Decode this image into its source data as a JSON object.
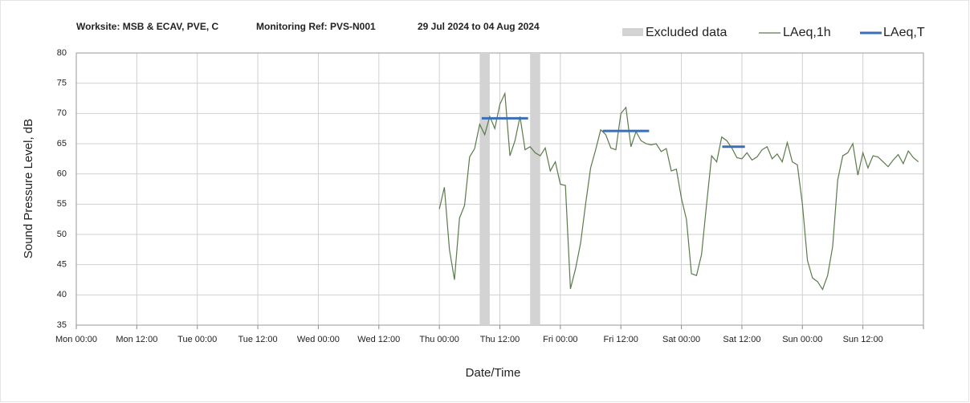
{
  "chart_data": {
    "type": "line",
    "title": "Worksite: MSB & ECAV, PVE, C",
    "subtitle": "Monitoring Ref: PVS-N001",
    "date_range": "29 Jul 2024 to 04 Aug 2024",
    "xlabel": "Date/Time",
    "ylabel": "Sound Pressure Level, dB",
    "xlim": [
      0,
      168
    ],
    "ylim": [
      35,
      80
    ],
    "yticks": [
      35,
      40,
      45,
      50,
      55,
      60,
      65,
      70,
      75,
      80
    ],
    "xticks": [
      {
        "value": 0,
        "label": "Mon 00:00"
      },
      {
        "value": 12,
        "label": "Mon 12:00"
      },
      {
        "value": 24,
        "label": "Tue 00:00"
      },
      {
        "value": 36,
        "label": "Tue 12:00"
      },
      {
        "value": 48,
        "label": "Wed 00:00"
      },
      {
        "value": 60,
        "label": "Wed 12:00"
      },
      {
        "value": 72,
        "label": "Thu 00:00"
      },
      {
        "value": 84,
        "label": "Thu 12:00"
      },
      {
        "value": 96,
        "label": "Fri 00:00"
      },
      {
        "value": 108,
        "label": "Fri 12:00"
      },
      {
        "value": 120,
        "label": "Sat 00:00"
      },
      {
        "value": 132,
        "label": "Sat 12:00"
      },
      {
        "value": 144,
        "label": "Sun 00:00"
      },
      {
        "value": 156,
        "label": "Sun 12:00"
      },
      {
        "value": 168,
        "label": ""
      }
    ],
    "grid": true,
    "excluded": {
      "name": "Excluded data",
      "color": "#d3d3d3",
      "ranges": [
        [
          80,
          82
        ],
        [
          90,
          92
        ]
      ]
    },
    "series": [
      {
        "name": "LAeq,1h",
        "color": "#5a7a4a",
        "x": [
          72,
          73,
          74,
          75,
          76,
          77,
          78,
          79,
          80,
          81,
          82,
          83,
          84,
          85,
          86,
          87,
          88,
          89,
          90,
          91,
          92,
          93,
          94,
          95,
          96,
          97,
          98,
          99,
          100,
          101,
          102,
          103,
          104,
          105,
          106,
          107,
          108,
          109,
          110,
          111,
          112,
          113,
          114,
          115,
          116,
          117,
          118,
          119,
          120,
          121,
          122,
          123,
          124,
          125,
          126,
          127,
          128,
          129,
          130,
          131,
          132,
          133,
          134,
          135,
          136,
          137,
          138,
          139,
          140,
          141,
          142,
          143,
          144,
          145,
          146,
          147,
          148,
          149,
          150,
          151,
          152,
          153,
          154,
          155,
          156,
          157,
          158,
          159,
          160,
          161,
          162,
          163,
          164,
          165,
          166,
          167
        ],
        "values": [
          54.2,
          57.8,
          47.5,
          42.5,
          52.7,
          54.8,
          62.8,
          64.2,
          68.2,
          66.5,
          69.5,
          67.5,
          71.5,
          73.3,
          63.0,
          65.5,
          69.5,
          64.0,
          64.5,
          63.5,
          63.0,
          64.3,
          60.5,
          62.0,
          58.3,
          58.1,
          41.0,
          44.3,
          48.5,
          55.0,
          61.0,
          64.0,
          67.3,
          66.5,
          64.3,
          64.0,
          70.0,
          71.0,
          64.5,
          67.0,
          65.5,
          65.0,
          64.8,
          65.0,
          63.7,
          64.2,
          60.5,
          60.8,
          56.0,
          52.5,
          43.5,
          43.2,
          46.7,
          55.0,
          63.0,
          62.0,
          66.1,
          65.5,
          64.3,
          62.7,
          62.5,
          63.5,
          62.3,
          62.8,
          64.0,
          64.5,
          62.5,
          63.3,
          62.0,
          65.2,
          62.0,
          61.5,
          55.0,
          45.7,
          42.8,
          42.2,
          40.9,
          43.2,
          48.0,
          59.0,
          63.0,
          63.5,
          65.0,
          59.8,
          63.5,
          61.0,
          63.0,
          62.8,
          62.0,
          61.2,
          62.3,
          63.2,
          61.7,
          63.8,
          62.7,
          62.0
        ]
      },
      {
        "name": "LAeq,T",
        "color": "#3a6fb8",
        "segments": [
          {
            "start": 80.4,
            "end": 89.6,
            "value": 69.2
          },
          {
            "start": 104.4,
            "end": 113.6,
            "value": 67.1
          },
          {
            "start": 128.1,
            "end": 132.6,
            "value": 64.5
          }
        ]
      }
    ]
  }
}
